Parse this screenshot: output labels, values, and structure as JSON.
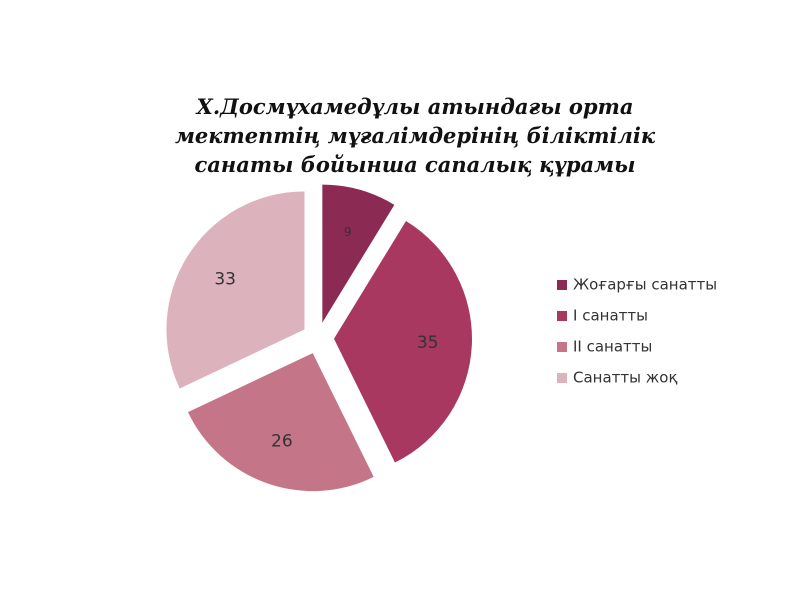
{
  "chart_data": {
    "type": "pie",
    "title": "Х.Досмұхамедұлы атындағы орта\nмектептің мұғалімдерінің біліктілік\nсанаты бойынша сапалық құрамы",
    "categories": [
      "Жоғарғы санатты",
      "I санатты",
      "II санатты",
      "Санатты жоқ"
    ],
    "values": [
      9,
      35,
      26,
      33
    ],
    "colors": [
      "#8b2a52",
      "#a8385f",
      "#c47688",
      "#dcb2bd"
    ],
    "legend": "right"
  }
}
